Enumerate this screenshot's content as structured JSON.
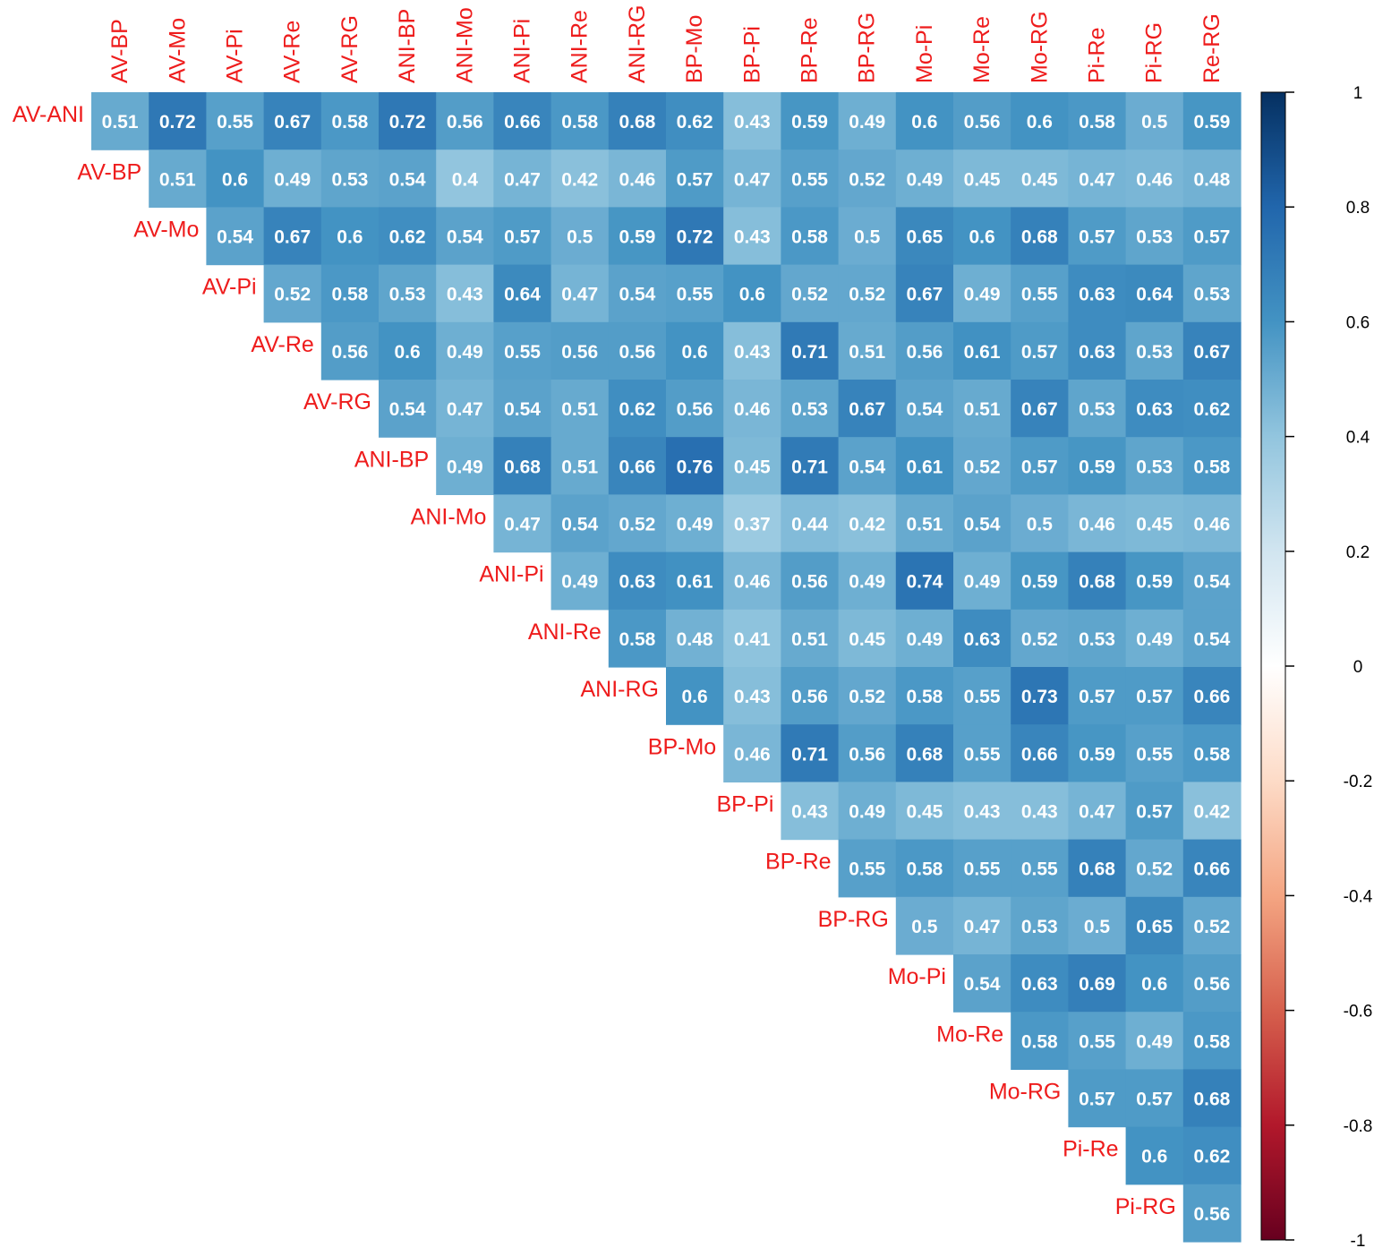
{
  "chart_data": {
    "type": "heatmap",
    "layout": "upper-triangle",
    "rows": [
      "AV-ANI",
      "AV-BP",
      "AV-Mo",
      "AV-Pi",
      "AV-Re",
      "AV-RG",
      "ANI-BP",
      "ANI-Mo",
      "ANI-Pi",
      "ANI-Re",
      "ANI-RG",
      "BP-Mo",
      "BP-Pi",
      "BP-Re",
      "BP-RG",
      "Mo-Pi",
      "Mo-Re",
      "Mo-RG",
      "Pi-Re",
      "Pi-RG"
    ],
    "columns": [
      "AV-BP",
      "AV-Mo",
      "AV-Pi",
      "AV-Re",
      "AV-RG",
      "ANI-BP",
      "ANI-Mo",
      "ANI-Pi",
      "ANI-Re",
      "ANI-RG",
      "BP-Mo",
      "BP-Pi",
      "BP-Re",
      "BP-RG",
      "Mo-Pi",
      "Mo-Re",
      "Mo-RG",
      "Pi-Re",
      "Pi-RG",
      "Re-RG"
    ],
    "values": [
      [
        0.51,
        0.72,
        0.55,
        0.67,
        0.58,
        0.72,
        0.56,
        0.66,
        0.58,
        0.68,
        0.62,
        0.43,
        0.59,
        0.49,
        0.6,
        0.56,
        0.6,
        0.58,
        0.5,
        0.59
      ],
      [
        0.51,
        0.6,
        0.49,
        0.53,
        0.54,
        0.4,
        0.47,
        0.42,
        0.46,
        0.57,
        0.47,
        0.55,
        0.52,
        0.49,
        0.45,
        0.45,
        0.47,
        0.46,
        0.48
      ],
      [
        0.54,
        0.67,
        0.6,
        0.62,
        0.54,
        0.57,
        0.5,
        0.59,
        0.72,
        0.43,
        0.58,
        0.5,
        0.65,
        0.6,
        0.68,
        0.57,
        0.53,
        0.57
      ],
      [
        0.52,
        0.58,
        0.53,
        0.43,
        0.64,
        0.47,
        0.54,
        0.55,
        0.6,
        0.52,
        0.52,
        0.67,
        0.49,
        0.55,
        0.63,
        0.64,
        0.53
      ],
      [
        0.56,
        0.6,
        0.49,
        0.55,
        0.56,
        0.56,
        0.6,
        0.43,
        0.71,
        0.51,
        0.56,
        0.61,
        0.57,
        0.63,
        0.53,
        0.67
      ],
      [
        0.54,
        0.47,
        0.54,
        0.51,
        0.62,
        0.56,
        0.46,
        0.53,
        0.67,
        0.54,
        0.51,
        0.67,
        0.53,
        0.63,
        0.62
      ],
      [
        0.49,
        0.68,
        0.51,
        0.66,
        0.76,
        0.45,
        0.71,
        0.54,
        0.61,
        0.52,
        0.57,
        0.59,
        0.53,
        0.58
      ],
      [
        0.47,
        0.54,
        0.52,
        0.49,
        0.37,
        0.44,
        0.42,
        0.51,
        0.54,
        0.5,
        0.46,
        0.45,
        0.46
      ],
      [
        0.49,
        0.63,
        0.61,
        0.46,
        0.56,
        0.49,
        0.74,
        0.49,
        0.59,
        0.68,
        0.59,
        0.54
      ],
      [
        0.58,
        0.48,
        0.41,
        0.51,
        0.45,
        0.49,
        0.63,
        0.52,
        0.53,
        0.49,
        0.54
      ],
      [
        0.6,
        0.43,
        0.56,
        0.52,
        0.58,
        0.55,
        0.73,
        0.57,
        0.57,
        0.66
      ],
      [
        0.46,
        0.71,
        0.56,
        0.68,
        0.55,
        0.66,
        0.59,
        0.55,
        0.58
      ],
      [
        0.43,
        0.49,
        0.45,
        0.43,
        0.43,
        0.47,
        0.57,
        0.42
      ],
      [
        0.55,
        0.58,
        0.55,
        0.55,
        0.68,
        0.52,
        0.66
      ],
      [
        0.5,
        0.47,
        0.53,
        0.5,
        0.65,
        0.52
      ],
      [
        0.54,
        0.63,
        0.69,
        0.6,
        0.56
      ],
      [
        0.58,
        0.55,
        0.49,
        0.58
      ],
      [
        0.57,
        0.57,
        0.68
      ],
      [
        0.6,
        0.62
      ],
      [
        0.56
      ]
    ],
    "colorbar": {
      "range": [
        -1,
        1
      ],
      "ticks": [
        "1",
        "0.8",
        "0.6",
        "0.4",
        "0.2",
        "0",
        "-0.2",
        "-0.4",
        "-0.6",
        "-0.8",
        "-1"
      ],
      "colors": [
        "#67001f",
        "#b2182b",
        "#d6604d",
        "#f4a582",
        "#fddbc7",
        "#ffffff",
        "#d1e5f0",
        "#92c5de",
        "#4393c3",
        "#2166ac",
        "#053061"
      ]
    },
    "label_color": "#ee1c1c",
    "value_color": "#ffffff"
  }
}
